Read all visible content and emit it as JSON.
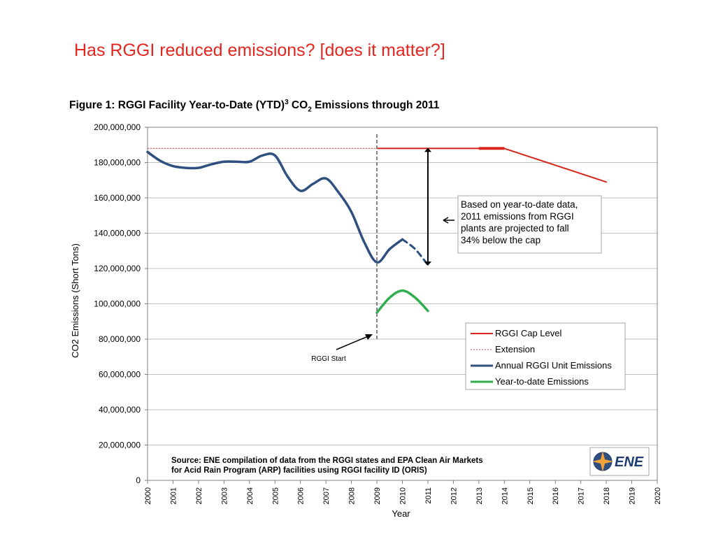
{
  "slide_title": "Has RGGI reduced emissions? [does it matter?]",
  "figure_title": {
    "prefix": "Figure 1: RGGI Facility Year-to-Date (YTD)",
    "sup": "3",
    "mid": " CO",
    "sub": "2",
    "suffix": " Emissions through 2011"
  },
  "colors": {
    "cap": "#d7261e",
    "extension": "#c0504d",
    "annual": "#2e4f7f",
    "ytd": "#2fae4e",
    "grid": "#bfbfbf",
    "slide_title": "#e3261f"
  },
  "chart_data": {
    "type": "line",
    "xlabel": "Year",
    "ylabel": "CO2 Emissions (Short Tons)",
    "xlim": [
      2000,
      2020
    ],
    "ylim": [
      0,
      200000000
    ],
    "x_ticks": [
      "2000",
      "2001",
      "2002",
      "2003",
      "2004",
      "2005",
      "2006",
      "2007",
      "2008",
      "2009",
      "2010",
      "2011",
      "2012",
      "2013",
      "2014",
      "2015",
      "2016",
      "2017",
      "2018",
      "2019",
      "2020"
    ],
    "y_ticks": [
      "0",
      "20,000,000",
      "40,000,000",
      "60,000,000",
      "80,000,000",
      "100,000,000",
      "120,000,000",
      "140,000,000",
      "160,000,000",
      "180,000,000",
      "200,000,000"
    ],
    "y_tick_values": [
      0,
      20000000,
      40000000,
      60000000,
      80000000,
      100000000,
      120000000,
      140000000,
      160000000,
      180000000,
      200000000
    ],
    "grid": true,
    "legend_position": "right",
    "series": [
      {
        "name": "RGGI Cap Level",
        "style": "solid",
        "x": [
          2009,
          2014,
          2018
        ],
        "y": [
          188000000,
          188000000,
          169000000
        ]
      },
      {
        "name": "Extension",
        "style": "dotted",
        "x": [
          2000,
          2009
        ],
        "y": [
          188000000,
          188000000
        ]
      },
      {
        "name": "Annual RGGI Unit Emissions",
        "style": "solid",
        "x": [
          2000,
          2000.5,
          2001,
          2001.5,
          2002,
          2002.5,
          2003,
          2003.5,
          2004,
          2004.5,
          2005,
          2005.5,
          2006,
          2006.5,
          2007,
          2007.5,
          2008,
          2008.5,
          2009,
          2009.5,
          2010
        ],
        "y": [
          186000000,
          181000000,
          178000000,
          177000000,
          177000000,
          179000000,
          180500000,
          180500000,
          180500000,
          184000000,
          184000000,
          172000000,
          164000000,
          168000000,
          171000000,
          163000000,
          152000000,
          135000000,
          123500000,
          131000000,
          136500000
        ]
      },
      {
        "name": "Annual RGGI Unit Emissions (projected)",
        "style": "dashed",
        "x": [
          2010,
          2010.5,
          2011
        ],
        "y": [
          136500000,
          131000000,
          122000000
        ]
      },
      {
        "name": "Year-to-date Emissions",
        "style": "solid",
        "x": [
          2009,
          2009.5,
          2010,
          2010.5,
          2011
        ],
        "y": [
          95000000,
          103500000,
          107500000,
          103500000,
          96000000
        ]
      }
    ],
    "legend": [
      {
        "label": "RGGI Cap Level",
        "key": "cap"
      },
      {
        "label": "Extension",
        "key": "extension"
      },
      {
        "label": "Annual RGGI Unit Emissions",
        "key": "annual"
      },
      {
        "label": "Year-to-date Emissions",
        "key": "ytd"
      }
    ],
    "rggi_start": {
      "label": "RGGI Start",
      "x": 2009
    },
    "gap_arrow": {
      "x": 2011,
      "y_top": 188000000,
      "y_bottom": 122000000
    },
    "annotation_lines": [
      "Based on year-to-date  data,",
      "2011 emissions from RGGI",
      "plants are projected to fall",
      "34% below the cap"
    ],
    "source_lines": [
      "Source: ENE compilation of data from the RGGI states and EPA Clean Air Markets",
      "for Acid Rain Program (ARP) facilities using RGGI facility ID (ORIS)"
    ],
    "logo_text": "ENE"
  }
}
